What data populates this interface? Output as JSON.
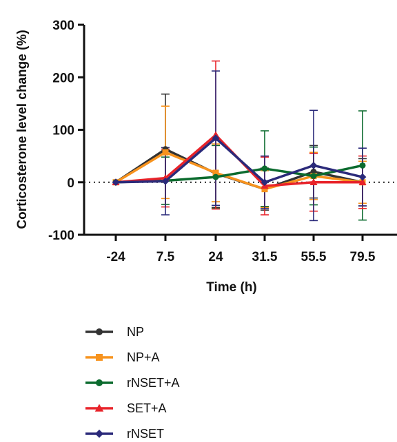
{
  "chart_data": {
    "type": "line",
    "ylabel": "Corticosterone level change (%)",
    "xlabel": "Time (h)",
    "ylim": [
      -100,
      300
    ],
    "yticks": [
      -100,
      0,
      100,
      200,
      300
    ],
    "categories": [
      "-24",
      "7.5",
      "24",
      "31.5",
      "55.5",
      "79.5"
    ],
    "reference_line": {
      "y": 0,
      "style": "dotted"
    },
    "legend_position": "bottom-left",
    "series": [
      {
        "name": "NP",
        "color": "#333333",
        "marker": "circle",
        "values": [
          0,
          63,
          17,
          -13,
          20,
          0
        ],
        "error": [
          0,
          105,
          65,
          40,
          50,
          45
        ]
      },
      {
        "name": "NP+A",
        "color": "#f7931e",
        "marker": "square",
        "values": [
          0,
          57,
          18,
          -13,
          12,
          0
        ],
        "error": [
          0,
          88,
          55,
          35,
          45,
          40
        ]
      },
      {
        "name": "rNSET+A",
        "color": "#0b6b2e",
        "marker": "circle",
        "values": [
          0,
          3,
          10,
          26,
          12,
          32
        ],
        "error": [
          0,
          45,
          60,
          72,
          55,
          104
        ]
      },
      {
        "name": "SET+A",
        "color": "#e8232a",
        "marker": "triangle",
        "values": [
          0,
          8,
          90,
          -7,
          0,
          0
        ],
        "error": [
          0,
          55,
          141,
          55,
          55,
          50
        ]
      },
      {
        "name": "rNSET",
        "color": "#2b2a7a",
        "marker": "diamond",
        "values": [
          0,
          2,
          84,
          0,
          32,
          10
        ],
        "error": [
          0,
          64,
          128,
          50,
          105,
          55
        ]
      }
    ]
  }
}
